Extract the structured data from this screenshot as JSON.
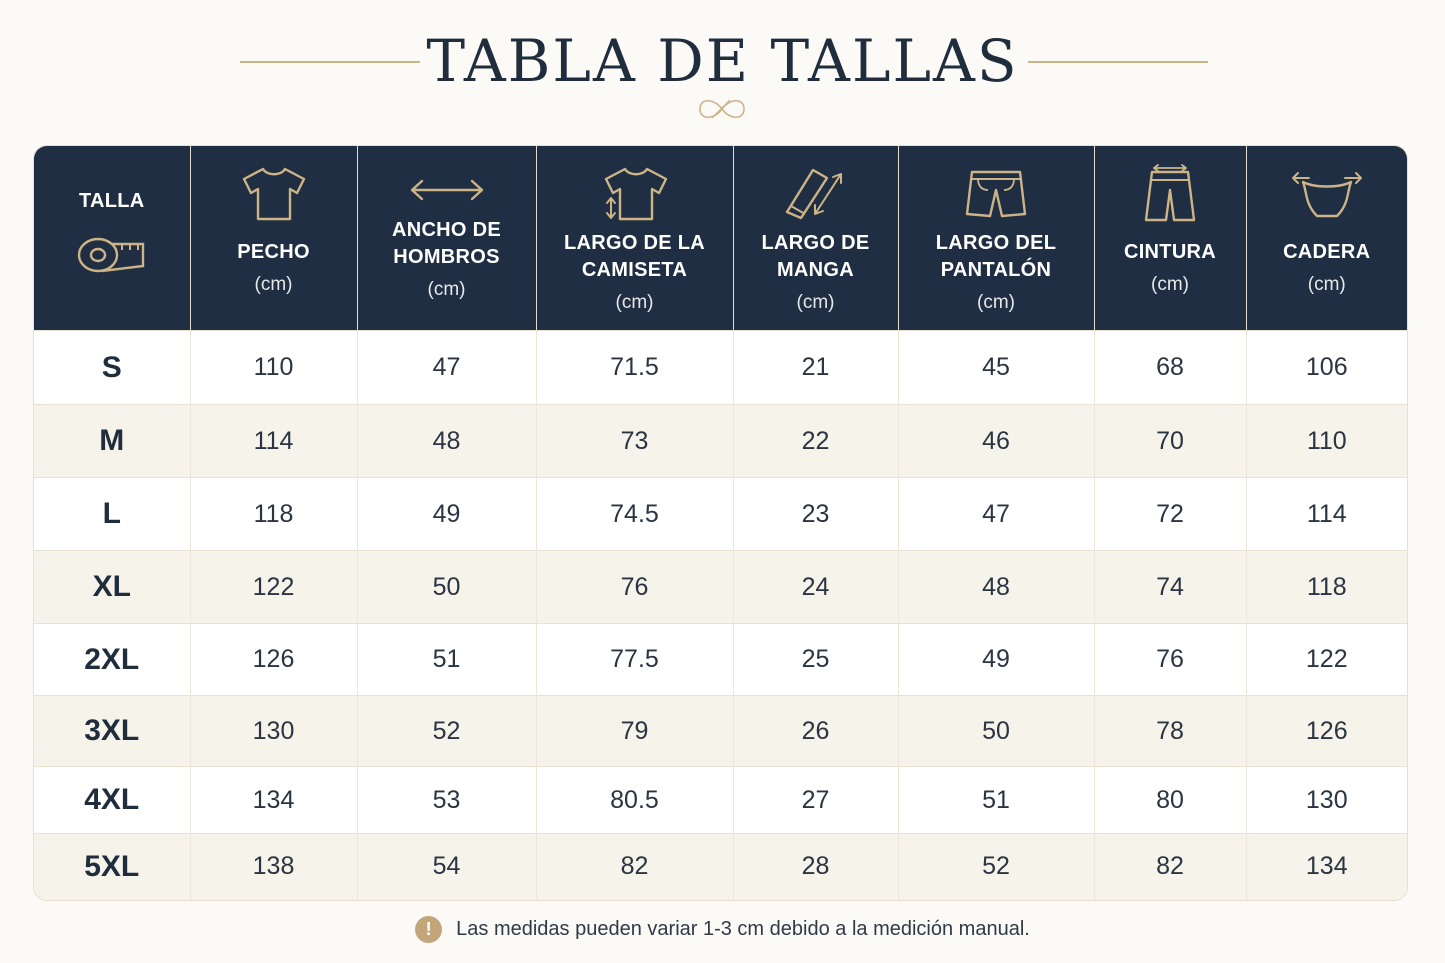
{
  "title": "TABLA DE TALLAS",
  "colors": {
    "navy": "#1f2e42",
    "gold": "#cdb487",
    "row_alt": "#f6f3ea"
  },
  "headers": [
    {
      "line1": "TALLA",
      "line2": "",
      "unit": "",
      "icon": "measuring-tape-icon"
    },
    {
      "line1": "PECHO",
      "line2": "",
      "unit": "(cm)",
      "icon": "tshirt-icon"
    },
    {
      "line1": "ANCHO DE",
      "line2": "HOMBROS",
      "unit": "(cm)",
      "icon": "double-arrow-icon"
    },
    {
      "line1": "LARGO DE LA",
      "line2": "CAMISETA",
      "unit": "(cm)",
      "icon": "tshirt-length-icon"
    },
    {
      "line1": "LARGO DE",
      "line2": "MANGA",
      "unit": "(cm)",
      "icon": "sleeve-icon"
    },
    {
      "line1": "LARGO DEL",
      "line2": "PANTALÓN",
      "unit": "(cm)",
      "icon": "shorts-icon"
    },
    {
      "line1": "CINTURA",
      "line2": "",
      "unit": "(cm)",
      "icon": "waist-icon"
    },
    {
      "line1": "CADERA",
      "line2": "",
      "unit": "(cm)",
      "icon": "hip-icon"
    }
  ],
  "rows": [
    [
      "S",
      "110",
      "47",
      "71.5",
      "21",
      "45",
      "68",
      "106"
    ],
    [
      "M",
      "114",
      "48",
      "73",
      "22",
      "46",
      "70",
      "110"
    ],
    [
      "L",
      "118",
      "49",
      "74.5",
      "23",
      "47",
      "72",
      "114"
    ],
    [
      "XL",
      "122",
      "50",
      "76",
      "24",
      "48",
      "74",
      "118"
    ],
    [
      "2XL",
      "126",
      "51",
      "77.5",
      "25",
      "49",
      "76",
      "122"
    ],
    [
      "3XL",
      "130",
      "52",
      "79",
      "26",
      "50",
      "78",
      "126"
    ],
    [
      "4XL",
      "134",
      "53",
      "80.5",
      "27",
      "51",
      "80",
      "130"
    ],
    [
      "5XL",
      "138",
      "54",
      "82",
      "28",
      "52",
      "82",
      "134"
    ]
  ],
  "note": {
    "icon_text": "!",
    "text": "Las medidas pueden variar 1-3 cm debido a la medición manual."
  }
}
